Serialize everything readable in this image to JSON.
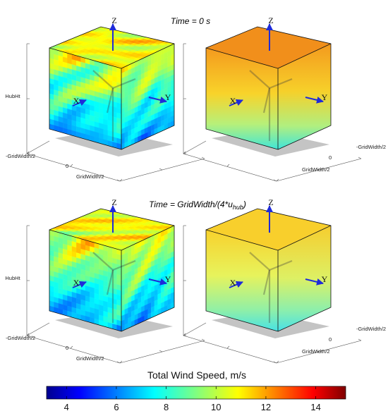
{
  "panels": [
    {
      "row": 0,
      "col": 0,
      "field": "turbulent",
      "seed": 3
    },
    {
      "row": 0,
      "col": 1,
      "field": "sheared-top"
    },
    {
      "row": 1,
      "col": 0,
      "field": "turbulent",
      "seed": 11
    },
    {
      "row": 1,
      "col": 1,
      "field": "sheared-yellow"
    }
  ],
  "titles": {
    "top": "Time = 0 s",
    "bottom_main": "Time = GridWidth/(4*u",
    "bottom_sub": "hub",
    "bottom_close": ")"
  },
  "axes": {
    "z_label": "Z",
    "x_label": "X",
    "y_label": "Y",
    "hubht_label": "HubHt",
    "neg_width_label": "-GridWidth/2",
    "zero_label": "0",
    "pos_width_label": "GridWidth/2"
  },
  "colorbar": {
    "title": "Total Wind Speed, m/s",
    "min": 3.2,
    "max": 15.2,
    "ticks": [
      4,
      6,
      8,
      10,
      12,
      14
    ],
    "tick_labels": [
      "4",
      "6",
      "8",
      "10",
      "12",
      "14"
    ],
    "colormap": "jet"
  },
  "colors": {
    "ground": "#c4c4c4",
    "vector": "#1f2bd9"
  }
}
